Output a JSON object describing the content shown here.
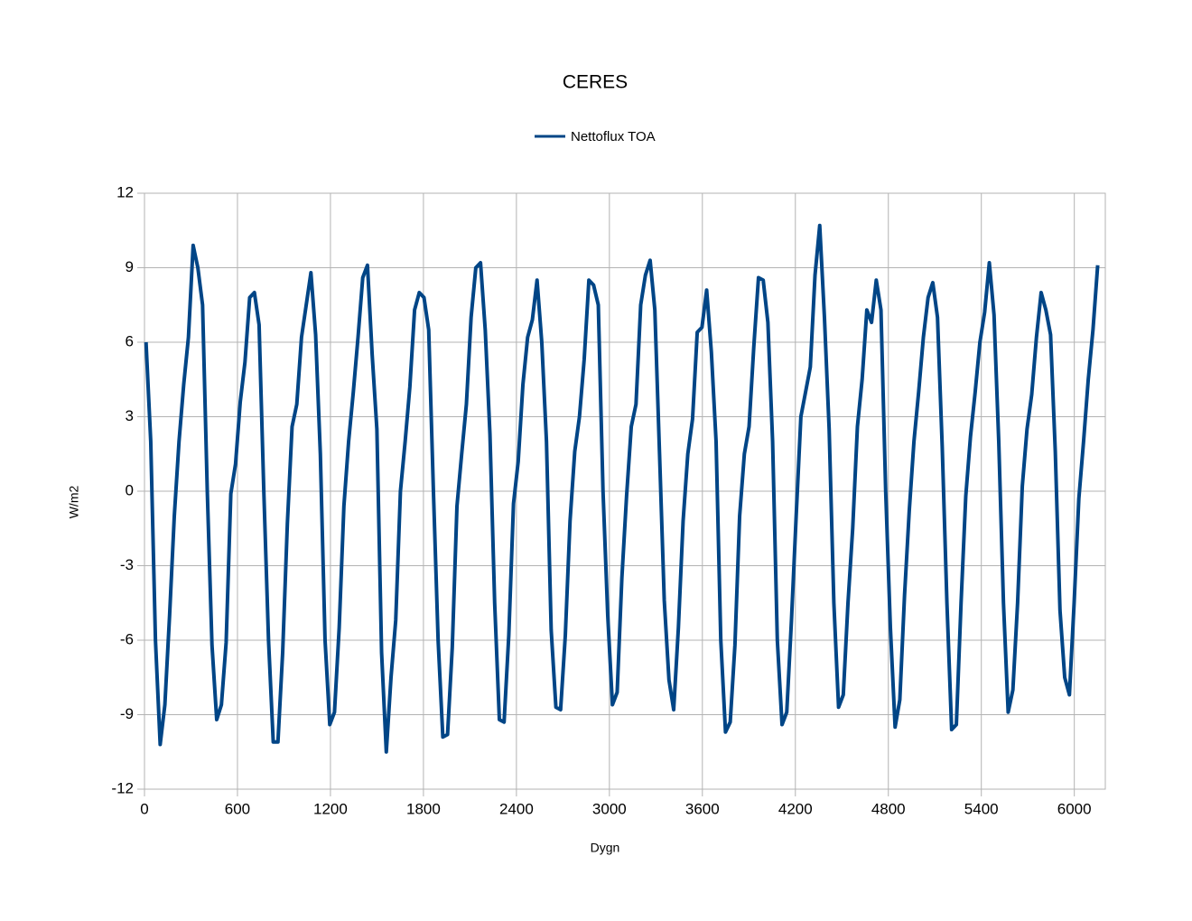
{
  "chart_data": {
    "type": "line",
    "title": "CERES",
    "x_label": "Dygn",
    "y_label": "W/m2",
    "legend": "top",
    "grid": true,
    "xlim": [
      0,
      6200
    ],
    "ylim": [
      -12,
      12
    ],
    "xticks": [
      0,
      600,
      1200,
      1800,
      2400,
      3000,
      3600,
      4200,
      4800,
      5400,
      6000
    ],
    "yticks": [
      -12,
      -9,
      -6,
      -3,
      0,
      3,
      6,
      9,
      12
    ],
    "x": [
      10,
      40.4,
      70.8,
      101.2,
      131.6,
      162,
      192.4,
      222.8,
      253.2,
      283.6,
      314,
      344.4,
      374.8,
      405.2,
      435.6,
      466,
      496.4,
      526.8,
      557.2,
      587.6,
      618,
      648.4,
      678.8,
      709.2,
      739.6,
      770,
      800.4,
      830.8,
      861.2,
      891.6,
      922,
      952.4,
      982.8,
      1013.2,
      1043.6,
      1074,
      1104.4,
      1134.8,
      1165.2,
      1195.6,
      1226,
      1256.4,
      1286.8,
      1317.2,
      1347.6,
      1378,
      1408.4,
      1438.8,
      1469.2,
      1499.6,
      1530,
      1560.4,
      1590.8,
      1621.2,
      1651.6,
      1682,
      1712.4,
      1742.8,
      1773.2,
      1803.6,
      1834,
      1864.4,
      1894.8,
      1925.2,
      1955.6,
      1986,
      2016.4,
      2046.8,
      2077.2,
      2107.6,
      2138,
      2168.4,
      2198.8,
      2229.2,
      2259.6,
      2290,
      2320.4,
      2350.8,
      2381.2,
      2411.6,
      2442,
      2472.4,
      2502.8,
      2533.2,
      2563.6,
      2594,
      2624.4,
      2654.8,
      2685.2,
      2715.6,
      2746,
      2776.4,
      2806.8,
      2837.2,
      2867.6,
      2898,
      2928.4,
      2958.8,
      2989.2,
      3019.6,
      3050,
      3080.4,
      3110.8,
      3141.2,
      3171.6,
      3202,
      3232.4,
      3262.8,
      3293.2,
      3323.6,
      3354,
      3384.4,
      3414.8,
      3445.2,
      3475.6,
      3506,
      3536.4,
      3566.8,
      3597.2,
      3627.6,
      3658,
      3688.4,
      3718.8,
      3749.2,
      3779.6,
      3810,
      3840.4,
      3870.8,
      3901.2,
      3931.6,
      3962,
      3992.4,
      4022.8,
      4053.2,
      4083.6,
      4114,
      4144.4,
      4174.8,
      4205.2,
      4235.6,
      4266,
      4296.4,
      4326.8,
      4357.2,
      4387.6,
      4418,
      4448.4,
      4478.8,
      4509.2,
      4539.6,
      4570,
      4600.4,
      4630.8,
      4661.2,
      4691.6,
      4722,
      4752.4,
      4782.8,
      4813.2,
      4843.6,
      4874,
      4904.4,
      4934.8,
      4965.2,
      4995.6,
      5026,
      5056.4,
      5086.8,
      5117.2,
      5147.6,
      5178,
      5208.4,
      5238.8,
      5269.2,
      5299.6,
      5330,
      5360.4,
      5390.8,
      5421.2,
      5451.6,
      5482,
      5512.4,
      5542.8,
      5573.2,
      5603.6,
      5634,
      5664.4,
      5694.8,
      5725.2,
      5755.6,
      5786,
      5816.4,
      5846.8,
      5877.2,
      5907.6,
      5938,
      5968.4,
      5998.8,
      6029.2,
      6059.6,
      6090,
      6120.4,
      6150.8
    ],
    "series": [
      {
        "name": "Nettoflux TOA",
        "color": "#004586",
        "values": [
          6,
          2,
          -6,
          -10.2,
          -8.6,
          -5,
          -1,
          2,
          4.3,
          6.2,
          9.9,
          9,
          7.5,
          0,
          -6.2,
          -9.2,
          -8.6,
          -6.1,
          -0.1,
          1.1,
          3.6,
          5.2,
          7.8,
          8,
          6.7,
          0,
          -6,
          -10.1,
          -10.1,
          -6.5,
          -1.3,
          2.6,
          3.5,
          6.2,
          7.5,
          8.8,
          6.3,
          1.5,
          -6,
          -9.4,
          -8.9,
          -5.5,
          -0.6,
          2,
          4,
          6.2,
          8.6,
          9.1,
          5.5,
          2.5,
          -6.5,
          -10.5,
          -7.5,
          -5.2,
          0,
          2,
          4.2,
          7.3,
          8,
          7.8,
          6.5,
          0,
          -6,
          -9.9,
          -9.8,
          -6.3,
          -0.6,
          1.5,
          3.5,
          7,
          9,
          9.2,
          6.5,
          2.3,
          -4.5,
          -9.2,
          -9.3,
          -5.8,
          -0.5,
          1.2,
          4.3,
          6.2,
          6.9,
          8.5,
          6,
          2,
          -5.6,
          -8.7,
          -8.8,
          -5.8,
          -1.2,
          1.6,
          3,
          5.3,
          8.5,
          8.3,
          7.5,
          0,
          -5,
          -8.6,
          -8.1,
          -3.5,
          -0.2,
          2.6,
          3.5,
          7.5,
          8.7,
          9.3,
          7.3,
          1.5,
          -4.4,
          -7.6,
          -8.8,
          -5.5,
          -1.2,
          1.5,
          2.9,
          6.4,
          6.6,
          8.1,
          5.6,
          2,
          -6,
          -9.7,
          -9.3,
          -6.2,
          -1,
          1.5,
          2.6,
          5.8,
          8.6,
          8.5,
          6.8,
          2,
          -6,
          -9.4,
          -8.9,
          -5.2,
          -1,
          3,
          4,
          5,
          8.7,
          10.7,
          7,
          2.5,
          -4.5,
          -8.7,
          -8.2,
          -4.5,
          -1.5,
          2.6,
          4.5,
          7.3,
          6.8,
          8.5,
          7.3,
          0,
          -5.5,
          -9.5,
          -8.4,
          -4.2,
          -0.8,
          2,
          4,
          6.2,
          7.8,
          8.4,
          7,
          1.8,
          -4.5,
          -9.6,
          -9.4,
          -4.5,
          -0.2,
          2.2,
          4,
          6,
          7.2,
          9.2,
          7.1,
          2,
          -4.5,
          -8.9,
          -8,
          -4.5,
          0.2,
          2.5,
          3.9,
          6.2,
          8,
          7.3,
          6.3,
          1.6,
          -4.8,
          -7.5,
          -8.2,
          -4.5,
          -0.3,
          2,
          4.5,
          6.5,
          9.1
        ]
      }
    ]
  }
}
